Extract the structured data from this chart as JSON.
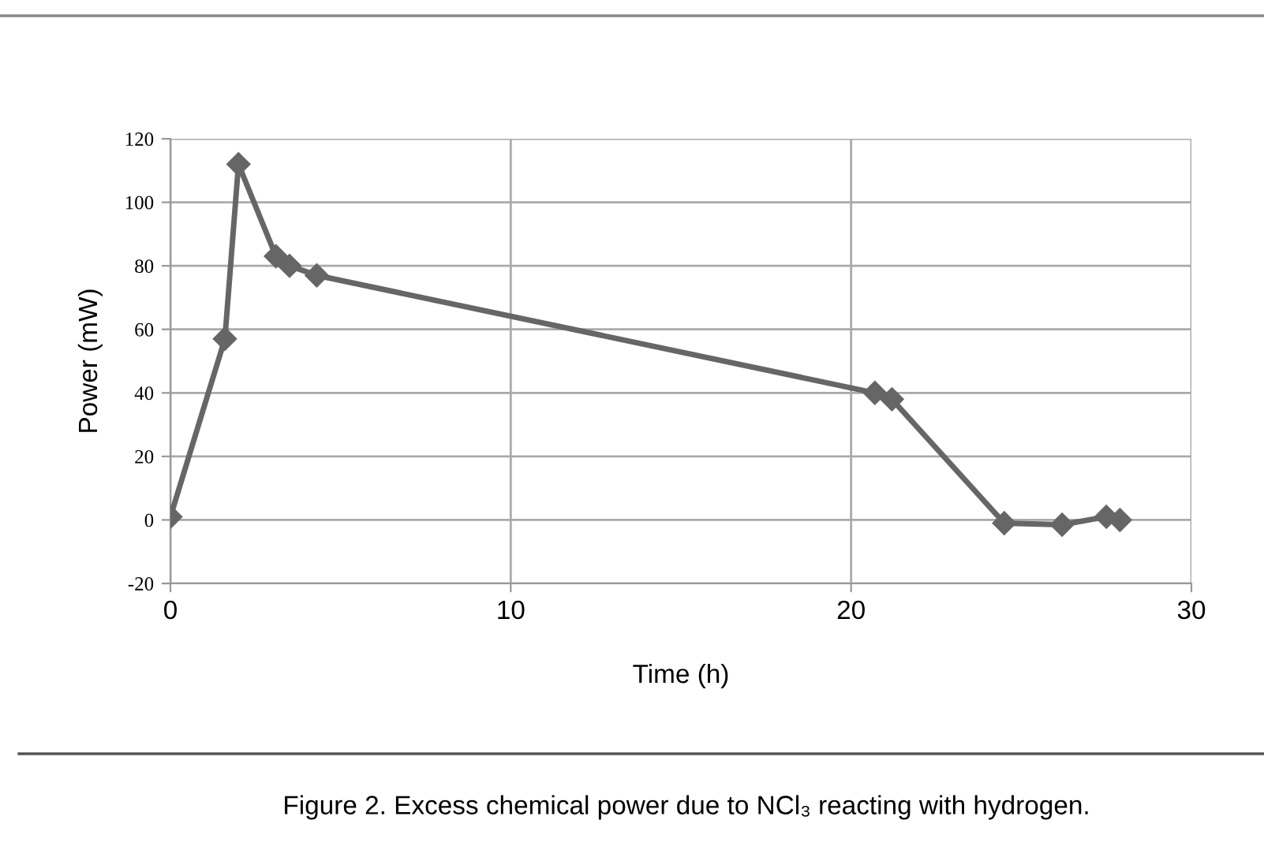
{
  "chart_data": {
    "type": "line",
    "xlabel": "Time (h)",
    "ylabel": "Power (mW)",
    "annotations": [
      "Figure 2. Excess chemical power due to NCl₃ reacting with hydrogen."
    ],
    "x": [
      0,
      1.6,
      2.0,
      3.1,
      3.5,
      4.3,
      20.7,
      21.2,
      24.5,
      26.2,
      27.5,
      27.9
    ],
    "series": [
      {
        "color": "#666666",
        "values": [
          1,
          57,
          112,
          83,
          80,
          77,
          40,
          38,
          -1,
          -1.5,
          1,
          0
        ]
      }
    ],
    "xlim": [
      0,
      30
    ],
    "xticks": [
      0,
      10,
      20,
      30
    ],
    "ylim": [
      -20,
      120
    ],
    "yticks": [
      -20,
      0,
      20,
      40,
      60,
      80,
      100,
      120
    ],
    "grid": true,
    "marker": "diamond",
    "line_style": "solid",
    "legend": false
  }
}
